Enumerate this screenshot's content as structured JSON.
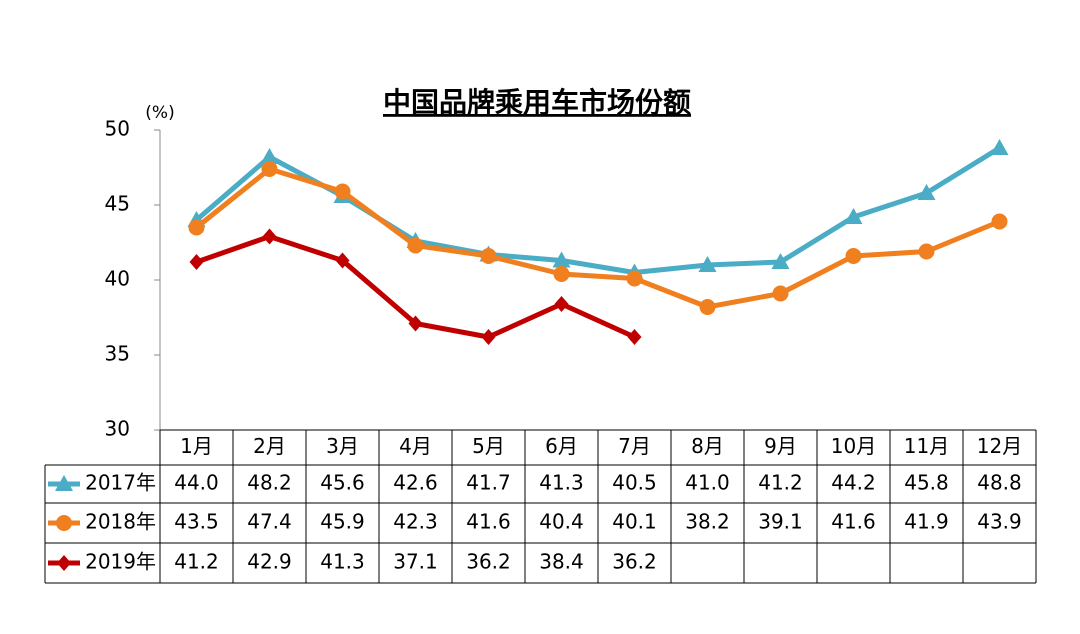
{
  "chart_data": {
    "type": "line",
    "title": "中国品牌乘用车市场份额",
    "y_label": "(%)",
    "categories": [
      "1月",
      "2月",
      "3月",
      "4月",
      "5月",
      "6月",
      "7月",
      "8月",
      "9月",
      "10月",
      "11月",
      "12月"
    ],
    "series": [
      {
        "name": "2017年",
        "color": "#4bacc6",
        "marker": "triangle",
        "values": [
          44.0,
          48.2,
          45.6,
          42.6,
          41.7,
          41.3,
          40.5,
          41.0,
          41.2,
          44.2,
          45.8,
          48.8
        ],
        "value_labels": [
          "44.0",
          "48.2",
          "45.6",
          "42.6",
          "41.7",
          "41.3",
          "40.5",
          "41.0",
          "41.2",
          "44.2",
          "45.8",
          "48.8"
        ]
      },
      {
        "name": "2018年",
        "color": "#f07f1f",
        "marker": "circle",
        "values": [
          43.5,
          47.4,
          45.9,
          42.3,
          41.6,
          40.4,
          40.1,
          38.2,
          39.1,
          41.6,
          41.9,
          43.9
        ],
        "value_labels": [
          "43.5",
          "47.4",
          "45.9",
          "42.3",
          "41.6",
          "40.4",
          "40.1",
          "38.2",
          "39.1",
          "41.6",
          "41.9",
          "43.9"
        ]
      },
      {
        "name": "2019年",
        "color": "#c00000",
        "marker": "diamond",
        "values": [
          41.2,
          42.9,
          41.3,
          37.1,
          36.2,
          38.4,
          36.2,
          null,
          null,
          null,
          null,
          null
        ],
        "value_labels": [
          "41.2",
          "42.9",
          "41.3",
          "37.1",
          "36.2",
          "38.4",
          "36.2",
          null,
          null,
          null,
          null,
          null
        ]
      }
    ],
    "ylim": [
      30,
      50
    ],
    "yticks": [
      30,
      35,
      40,
      45,
      50
    ],
    "grid": false
  }
}
